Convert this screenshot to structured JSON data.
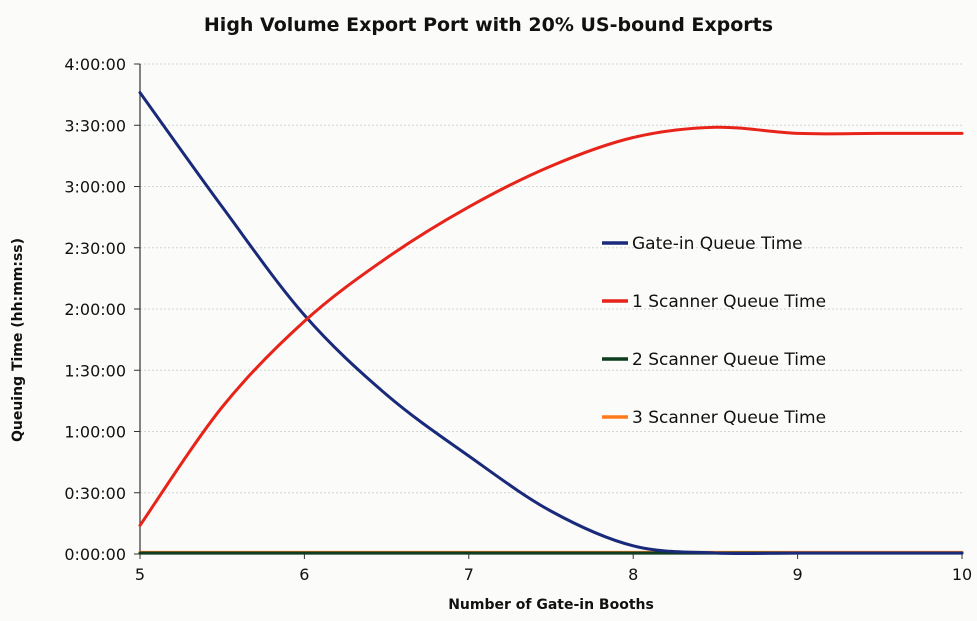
{
  "chart_data": {
    "type": "line",
    "title": "High Volume Export Port with 20% US-bound Exports",
    "xlabel": "Number of Gate-in Booths",
    "ylabel": "Queuing Time (hh:mm:ss)",
    "x": [
      5,
      5.5,
      6,
      6.5,
      7,
      7.5,
      8,
      8.5,
      9,
      9.5,
      10
    ],
    "xlim": [
      5,
      10
    ],
    "ylim_minutes": [
      0,
      240
    ],
    "x_ticks": [
      "5",
      "6",
      "7",
      "8",
      "9",
      "10"
    ],
    "y_ticks": [
      "0:00:00",
      "0:30:00",
      "1:00:00",
      "1:30:00",
      "2:00:00",
      "2:30:00",
      "3:00:00",
      "3:30:00",
      "4:00:00"
    ],
    "y_unit": "minutes",
    "grid": "horizontal",
    "legend_position": "right",
    "series": [
      {
        "name": "Gate-in Queue Time",
        "color": "#1a2a7a",
        "values": [
          226,
          170,
          117,
          78,
          48,
          21,
          4,
          0.5,
          0.5,
          0.5,
          0.5
        ]
      },
      {
        "name": "1 Scanner Queue Time",
        "color": "#e8231a",
        "values": [
          14,
          72,
          114,
          145,
          170,
          190,
          204,
          209,
          206,
          206,
          206
        ]
      },
      {
        "name": "2 Scanner Queue Time",
        "color": "#0b3d1e",
        "values": [
          0.5,
          0.5,
          0.5,
          0.5,
          0.5,
          0.5,
          0.5,
          0.5,
          0.5,
          0.5,
          0.5
        ]
      },
      {
        "name": "3 Scanner Queue Time",
        "color": "#ff7a1a",
        "values": [
          0.8,
          0.8,
          0.8,
          0.8,
          0.8,
          0.8,
          0.8,
          0.8,
          0.8,
          0.8,
          0.8
        ]
      }
    ]
  }
}
